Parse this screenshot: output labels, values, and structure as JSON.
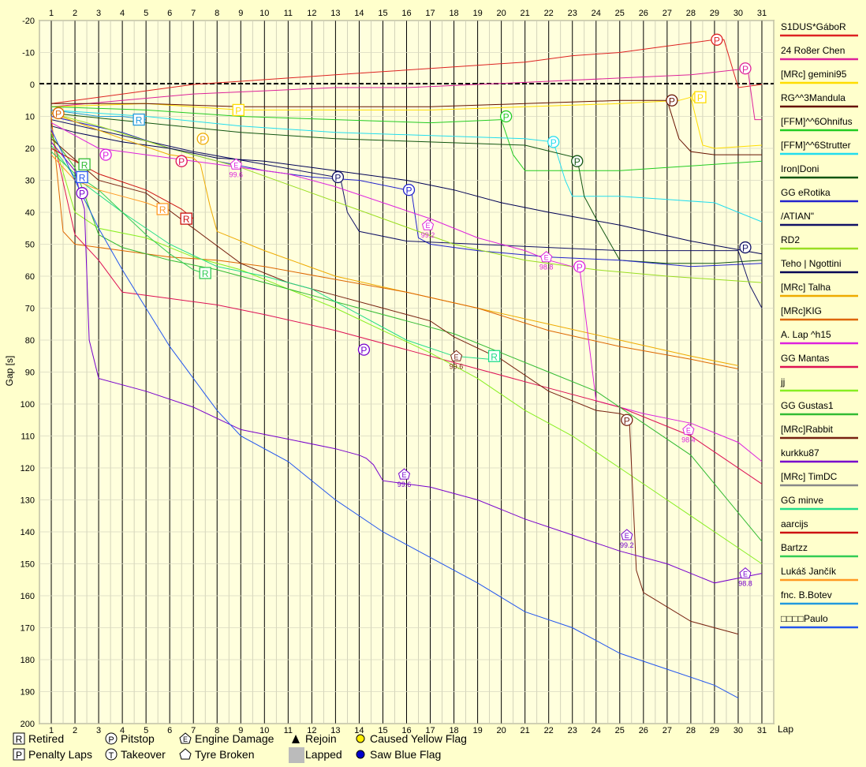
{
  "chart_data": {
    "type": "line",
    "title": "",
    "xlabel": "Lap",
    "ylabel": "Gap [s]",
    "xlim": [
      0.5,
      31.5
    ],
    "ylim": [
      -20,
      200
    ],
    "y_inverted": true,
    "x_ticks": [
      1,
      2,
      3,
      4,
      5,
      6,
      7,
      8,
      9,
      10,
      11,
      12,
      13,
      14,
      15,
      16,
      17,
      18,
      19,
      20,
      21,
      22,
      23,
      24,
      25,
      26,
      27,
      28,
      29,
      30,
      31
    ],
    "y_ticks": [
      -20,
      -10,
      0,
      10,
      20,
      30,
      40,
      50,
      60,
      70,
      80,
      90,
      100,
      110,
      120,
      130,
      140,
      150,
      160,
      170,
      180,
      190,
      200
    ],
    "grid": true,
    "legend_position": "right",
    "series": [
      {
        "name": "S1DUS*GáboR",
        "color": "#dd2222",
        "x": [
          1,
          3,
          5,
          7,
          9,
          11,
          13,
          15,
          17,
          19,
          21,
          23,
          25,
          27,
          29,
          29.4,
          30,
          31
        ],
        "y": [
          6,
          4,
          2,
          0,
          -1,
          -2,
          -3,
          -4,
          -5,
          -6,
          -7,
          -9,
          -10,
          -12,
          -14,
          -14,
          1,
          0
        ]
      },
      {
        "name": "24 Ro8er Chen",
        "color": "#dd2299",
        "x": [
          1,
          4,
          7,
          10,
          13,
          16,
          19,
          22,
          25,
          28,
          30.4,
          30.7,
          31
        ],
        "y": [
          7,
          5,
          3,
          2,
          1,
          1,
          0,
          -1,
          -2,
          -3,
          -5,
          11,
          11
        ]
      },
      {
        "name": "[MRc] gemini95",
        "color": "#ffdd00",
        "x": [
          1,
          5,
          9,
          13,
          17,
          21,
          25,
          27.5,
          28,
          28.5,
          29,
          31
        ],
        "y": [
          7,
          6,
          8,
          8,
          8,
          7,
          6,
          5,
          4,
          19,
          20,
          19
        ]
      },
      {
        "name": "RG^^3Mandula",
        "color": "#661100",
        "x": [
          1,
          5,
          9,
          13,
          17,
          21,
          25,
          27,
          27.5,
          28,
          29,
          31
        ],
        "y": [
          6,
          6,
          7,
          7,
          7,
          6,
          5,
          5,
          17,
          21,
          22,
          22
        ]
      },
      {
        "name": "[FFM]^^6Ohnifus",
        "color": "#22cc22",
        "x": [
          1,
          5,
          9,
          13,
          17,
          20,
          20.5,
          21,
          23,
          25,
          27,
          29,
          31
        ],
        "y": [
          7,
          8,
          10,
          11,
          12,
          11,
          22,
          27,
          27,
          27,
          26,
          25,
          24
        ]
      },
      {
        "name": "[FFM]^^6Strutter",
        "color": "#22ddee",
        "x": [
          1,
          5,
          9,
          13,
          17,
          21,
          22.2,
          22.7,
          23,
          25,
          27,
          29,
          31
        ],
        "y": [
          8,
          10,
          13,
          15,
          16,
          17,
          18,
          30,
          35,
          35,
          36,
          37,
          43
        ]
      },
      {
        "name": "Iron|Doni",
        "color": "#115511",
        "x": [
          1,
          5,
          9,
          13,
          17,
          21,
          23.2,
          23.5,
          24,
          25,
          27,
          29,
          31
        ],
        "y": [
          9,
          12,
          15,
          17,
          18,
          19,
          23,
          35,
          42,
          55,
          56,
          56,
          55
        ]
      },
      {
        "name": "GG eRotika",
        "color": "#2222cc",
        "x": [
          1,
          4,
          6,
          8,
          10,
          12,
          14,
          16,
          16.2,
          16.5,
          17,
          19,
          22,
          25,
          28,
          31
        ],
        "y": [
          10,
          15,
          20,
          24,
          27,
          29,
          30,
          33,
          33,
          48,
          50,
          52,
          54,
          55,
          57,
          56
        ]
      },
      {
        "name": "/ATIAN\"",
        "color": "#111166",
        "x": [
          1,
          4,
          7,
          10,
          13,
          13.2,
          13.5,
          14,
          16,
          19,
          22,
          25,
          28,
          30,
          30.5,
          31
        ],
        "y": [
          11,
          16,
          21,
          25,
          29,
          29,
          40,
          46,
          49,
          50,
          51,
          52,
          52,
          52,
          63,
          70
        ]
      },
      {
        "name": "RD2",
        "color": "#99dd22",
        "x": [
          1,
          3,
          6,
          9,
          12,
          15,
          18,
          21,
          24,
          27,
          31
        ],
        "y": [
          9,
          13,
          20,
          26,
          34,
          42,
          50,
          55,
          58,
          60,
          62
        ]
      },
      {
        "name": "Teho | Ngottini",
        "color": "#000055",
        "x": [
          1,
          2,
          4,
          6,
          8,
          10,
          12,
          14,
          16,
          18,
          20,
          22,
          25,
          28,
          31
        ],
        "y": [
          13,
          15,
          18,
          20,
          23,
          24,
          26,
          28,
          30,
          33,
          37,
          40,
          44,
          49,
          53
        ]
      },
      {
        "name": "[MRc] Talha",
        "color": "#eeaa00",
        "x": [
          1,
          4,
          6,
          7,
          7.3,
          7.7,
          8,
          10,
          13,
          16,
          19,
          22,
          25,
          28,
          30
        ],
        "y": [
          9,
          17,
          22,
          23,
          25,
          38,
          46,
          52,
          60,
          65,
          70,
          75,
          80,
          85,
          88
        ]
      },
      {
        "name": "[MRc]KIG",
        "color": "#dd6600",
        "x": [
          1,
          1.5,
          2,
          4,
          6,
          8,
          10,
          13,
          16,
          19,
          22,
          25,
          28,
          30
        ],
        "y": [
          10,
          46,
          50,
          52,
          54,
          55,
          57,
          61,
          65,
          70,
          77,
          82,
          86,
          89
        ]
      },
      {
        "name": "A. Lap ^h15",
        "color": "#dd22dd",
        "x": [
          1,
          3,
          5,
          7,
          9,
          11,
          13,
          15,
          17,
          19,
          21,
          22,
          23,
          23.3,
          23.6,
          24,
          26,
          28,
          30,
          31
        ],
        "y": [
          12,
          20,
          22,
          24,
          26,
          28,
          32,
          37,
          42,
          48,
          52,
          55,
          57,
          57,
          75,
          99,
          103,
          106,
          112,
          118
        ]
      },
      {
        "name": "GG Mantas",
        "color": "#dd1155",
        "x": [
          1,
          2,
          3,
          4,
          6,
          8,
          10,
          13,
          16,
          19,
          22,
          25,
          28,
          31
        ],
        "y": [
          14,
          47,
          55,
          65,
          67,
          69,
          72,
          77,
          83,
          89,
          95,
          101,
          110,
          125
        ]
      },
      {
        "name": "jj",
        "color": "#88ee22",
        "x": [
          1,
          2,
          3,
          5,
          7,
          9,
          11,
          13,
          15,
          17,
          19,
          21,
          23,
          25,
          27,
          29,
          31
        ],
        "y": [
          15,
          40,
          45,
          48,
          54,
          58,
          64,
          70,
          77,
          84,
          92,
          102,
          110,
          120,
          130,
          140,
          150
        ]
      },
      {
        "name": "GG Gustas1",
        "color": "#33bb33",
        "x": [
          1,
          2,
          3,
          4,
          6,
          8,
          10,
          12,
          14,
          16,
          18,
          20,
          22,
          24,
          26,
          28,
          31
        ],
        "y": [
          16,
          26,
          47,
          51,
          55,
          58,
          62,
          66,
          70,
          74,
          78,
          84,
          90,
          96,
          106,
          116,
          143
        ]
      },
      {
        "name": "[MRc]Rabbit",
        "color": "#772211",
        "x": [
          1,
          3,
          5,
          7,
          9,
          11,
          13,
          15,
          17,
          18,
          20,
          22,
          24,
          25,
          25.4,
          25.7,
          26,
          28,
          30
        ],
        "y": [
          17,
          30,
          34,
          45,
          56,
          62,
          66,
          70,
          74,
          79,
          86,
          96,
          102,
          103,
          104,
          152,
          159,
          168,
          172
        ]
      },
      {
        "name": "kurkku87",
        "color": "#7700cc",
        "x": [
          1,
          2,
          2.2,
          2.4,
          2.6,
          3,
          5,
          7,
          9,
          11,
          13,
          14,
          14.3,
          14.6,
          15,
          17,
          19,
          21,
          23,
          25,
          27,
          29,
          31
        ],
        "y": [
          18,
          27,
          34,
          39,
          80,
          92,
          96,
          101,
          108,
          111,
          114,
          116,
          117,
          119,
          124,
          126,
          130,
          136,
          141,
          146,
          150,
          156,
          153
        ]
      },
      {
        "name": "[MRc] TimDC",
        "color": "#888888",
        "x": [],
        "y": []
      },
      {
        "name": "GG minve",
        "color": "#22dd88",
        "x": [
          1,
          2,
          4,
          6,
          8,
          10,
          12,
          14,
          16,
          18,
          19.5
        ],
        "y": [
          19,
          29,
          40,
          50,
          57,
          60,
          64,
          72,
          80,
          85,
          86
        ]
      },
      {
        "name": "aarcijs",
        "color": "#cc1111",
        "x": [
          1,
          2,
          3,
          5,
          6,
          6.5,
          7
        ],
        "y": [
          20,
          24,
          28,
          33,
          37,
          39,
          42
        ]
      },
      {
        "name": "Bartzz",
        "color": "#33cc55",
        "x": [
          1,
          2,
          3,
          4,
          5,
          6,
          7,
          7.4
        ],
        "y": [
          21,
          28,
          33,
          40,
          47,
          53,
          58,
          59
        ]
      },
      {
        "name": "Lukáš Jančík",
        "color": "#ff9922",
        "x": [
          1,
          2,
          3,
          4,
          5,
          5.7
        ],
        "y": [
          22,
          30,
          33,
          35,
          37,
          39
        ]
      },
      {
        "name": "fnc. B.Botev",
        "color": "#2299dd",
        "x": [
          1,
          2,
          3,
          4,
          5
        ],
        "y": [
          8,
          9,
          10,
          10,
          11
        ]
      },
      {
        "name": "□□□□Paulo",
        "color": "#2255ee",
        "x": [
          1,
          2,
          3,
          4,
          5,
          6,
          7,
          8,
          9,
          11,
          13,
          15,
          17,
          19,
          21,
          23,
          25,
          27,
          29,
          30
        ],
        "y": [
          14,
          30,
          45,
          58,
          70,
          82,
          92,
          102,
          110,
          118,
          130,
          140,
          148,
          156,
          165,
          170,
          178,
          183,
          188,
          192
        ]
      }
    ],
    "markers": [
      {
        "type": "P",
        "shape": "circle",
        "x": 29.1,
        "y": -14,
        "color": "#dd2222"
      },
      {
        "type": "P",
        "shape": "circle",
        "x": 30.3,
        "y": -5,
        "color": "#dd2299"
      },
      {
        "type": "P",
        "shape": "circle",
        "x": 27.2,
        "y": 5,
        "color": "#661100"
      },
      {
        "type": "P",
        "shape": "circle",
        "x": 28.3,
        "y": 4,
        "color": "#ffdd00"
      },
      {
        "type": "P",
        "shape": "circle",
        "x": 20.2,
        "y": 10,
        "color": "#22cc22"
      },
      {
        "type": "P",
        "shape": "circle",
        "x": 22.2,
        "y": 18,
        "color": "#22ddee"
      },
      {
        "type": "P",
        "shape": "circle",
        "x": 23.2,
        "y": 24,
        "color": "#115511"
      },
      {
        "type": "P",
        "shape": "circle",
        "x": 16.1,
        "y": 33,
        "color": "#2222cc"
      },
      {
        "type": "P",
        "shape": "circle",
        "x": 13.1,
        "y": 29,
        "color": "#111166"
      },
      {
        "type": "P",
        "shape": "circle",
        "x": 30.3,
        "y": 51,
        "color": "#111166"
      },
      {
        "type": "P",
        "shape": "circle",
        "x": 7.4,
        "y": 17,
        "color": "#eeaa00"
      },
      {
        "type": "P",
        "shape": "circle",
        "x": 3.3,
        "y": 22,
        "color": "#dd22dd"
      },
      {
        "type": "P",
        "shape": "circle",
        "x": 6.5,
        "y": 24,
        "color": "#dd1155"
      },
      {
        "type": "P",
        "shape": "circle",
        "x": 2.3,
        "y": 34,
        "color": "#7700cc"
      },
      {
        "type": "P",
        "shape": "circle",
        "x": 14.2,
        "y": 83,
        "color": "#7700cc"
      },
      {
        "type": "P",
        "shape": "circle",
        "x": 23.3,
        "y": 57,
        "color": "#dd22dd"
      },
      {
        "type": "P",
        "shape": "circle",
        "x": 25.3,
        "y": 105,
        "color": "#772211"
      },
      {
        "type": "P",
        "shape": "circle",
        "x": 1.3,
        "y": 9,
        "color": "#dd6600"
      },
      {
        "type": "R",
        "shape": "square",
        "x": 4.7,
        "y": 11,
        "color": "#2299dd"
      },
      {
        "type": "R",
        "shape": "square",
        "x": 2.3,
        "y": 29,
        "color": "#2255ee"
      },
      {
        "type": "R",
        "shape": "square",
        "x": 2.4,
        "y": 25,
        "color": "#33bb33"
      },
      {
        "type": "R",
        "shape": "square",
        "x": 5.7,
        "y": 39,
        "color": "#ff9922"
      },
      {
        "type": "R",
        "shape": "square",
        "x": 6.7,
        "y": 42,
        "color": "#cc1111"
      },
      {
        "type": "R",
        "shape": "square",
        "x": 7.5,
        "y": 59,
        "color": "#33cc55"
      },
      {
        "type": "R",
        "shape": "square",
        "x": 19.7,
        "y": 85,
        "color": "#22dd88"
      },
      {
        "type": "P",
        "shape": "square",
        "x": 8.9,
        "y": 8,
        "color": "#ffdd00"
      },
      {
        "type": "P",
        "shape": "square",
        "x": 28.4,
        "y": 4,
        "color": "#ffdd00"
      },
      {
        "type": "E",
        "shape": "pentagon",
        "x": 8.8,
        "y": 25,
        "color": "#dd22dd",
        "label": "99.6"
      },
      {
        "type": "E",
        "shape": "pentagon",
        "x": 16.9,
        "y": 44,
        "color": "#dd22dd",
        "label": "99.2"
      },
      {
        "type": "E",
        "shape": "pentagon",
        "x": 21.9,
        "y": 54,
        "color": "#dd22dd",
        "label": "98.8"
      },
      {
        "type": "E",
        "shape": "pentagon",
        "x": 18.1,
        "y": 85,
        "color": "#772211",
        "label": "99.6"
      },
      {
        "type": "E",
        "shape": "pentagon",
        "x": 15.9,
        "y": 122,
        "color": "#7700cc",
        "label": "99.6"
      },
      {
        "type": "E",
        "shape": "pentagon",
        "x": 25.3,
        "y": 141,
        "color": "#7700cc",
        "label": "99.2"
      },
      {
        "type": "E",
        "shape": "pentagon",
        "x": 27.9,
        "y": 108,
        "color": "#dd22dd",
        "label": "98.4"
      },
      {
        "type": "E",
        "shape": "pentagon",
        "x": 30.3,
        "y": 153,
        "color": "#7700cc",
        "label": "98.8"
      }
    ],
    "bottom_legend": {
      "items": [
        {
          "symbol": "R",
          "shape": "square",
          "label": "Retired"
        },
        {
          "symbol": "P",
          "shape": "square",
          "label": "Penalty Laps"
        },
        {
          "symbol": "P",
          "shape": "circle",
          "label": "Pitstop"
        },
        {
          "symbol": "T",
          "shape": "circle",
          "label": "Takeover"
        },
        {
          "symbol": "E",
          "shape": "pentagon",
          "label": "Engine Damage"
        },
        {
          "symbol": "",
          "shape": "pentagon",
          "label": "Tyre Broken"
        },
        {
          "symbol": "",
          "shape": "triangle",
          "label": "Rejoin"
        },
        {
          "symbol": "",
          "shape": "gray-box",
          "label": "Lapped"
        },
        {
          "symbol": "",
          "shape": "yellow-dot",
          "label": "Caused Yellow Flag"
        },
        {
          "symbol": "",
          "shape": "blue-dot",
          "label": "Saw Blue Flag"
        }
      ]
    }
  }
}
